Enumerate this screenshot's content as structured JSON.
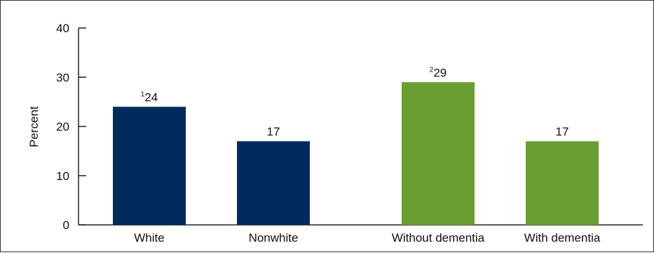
{
  "chart_data": {
    "type": "bar",
    "ylabel": "Percent",
    "ylim": [
      0,
      40
    ],
    "yticks": [
      0,
      10,
      20,
      30,
      40
    ],
    "categories": [
      "White",
      "Nonwhite",
      "Without dementia",
      "With dementia"
    ],
    "values": [
      24,
      17,
      29,
      17
    ],
    "value_labels": [
      "24",
      "17",
      "29",
      "17"
    ],
    "value_superscripts": [
      "1",
      "",
      "2",
      ""
    ],
    "bar_colors": [
      "#002b5c",
      "#002b5c",
      "#6b9e32",
      "#6b9e32"
    ],
    "groups": [
      {
        "categories": [
          "White",
          "Nonwhite"
        ],
        "color": "#002b5c"
      },
      {
        "categories": [
          "Without dementia",
          "With dementia"
        ],
        "color": "#6b9e32"
      }
    ],
    "grid": false,
    "legend": "none"
  }
}
